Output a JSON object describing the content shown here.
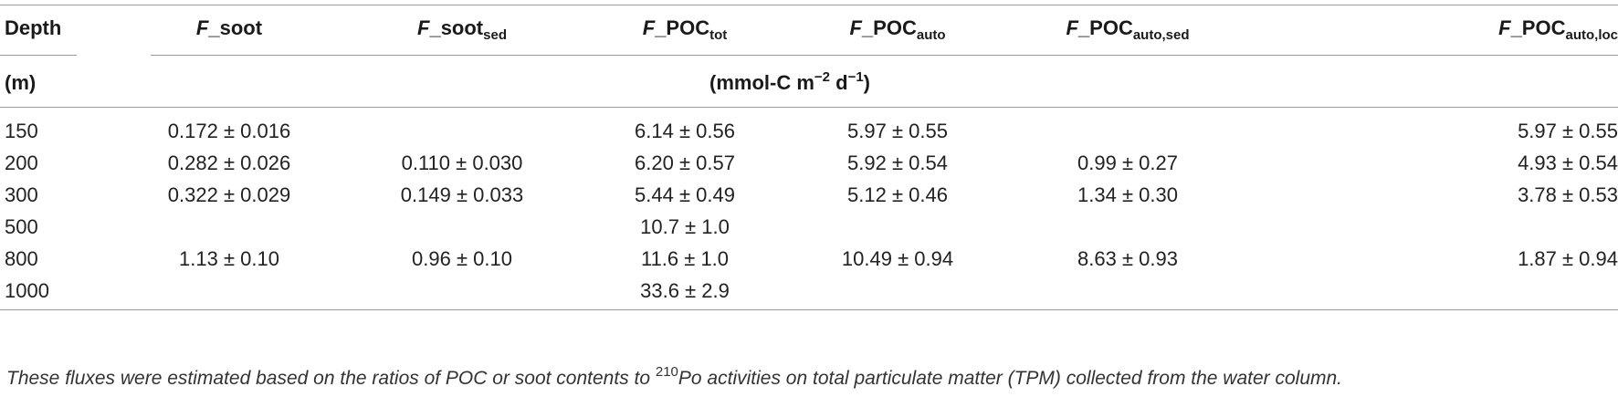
{
  "table": {
    "headers": {
      "depth": "Depth",
      "f_soot": {
        "pre": "F",
        "main": "_soot",
        "sub": ""
      },
      "f_soot_sed": {
        "pre": "F",
        "main": "_soot",
        "sub": "sed"
      },
      "f_poc_tot": {
        "pre": "F",
        "main": "_POC",
        "sub": "tot"
      },
      "f_poc_auto": {
        "pre": "F",
        "main": "_POC",
        "sub": "auto"
      },
      "f_poc_auto_sed": {
        "pre": "F",
        "main": "_POC",
        "sub": "auto,sed"
      },
      "f_poc_auto_loc": {
        "pre": "F",
        "main": "_POC",
        "sub": "auto,loc"
      }
    },
    "units": {
      "depth": "(m)",
      "flux_pre": "(mmol-C m",
      "flux_exp1": "−2",
      "flux_mid": " d",
      "flux_exp2": "−1",
      "flux_post": ")"
    },
    "rows": [
      {
        "depth": "150",
        "f_soot": "0.172 ± 0.016",
        "f_soot_sed": "",
        "f_poc_tot": "6.14 ± 0.56",
        "f_poc_auto": "5.97 ± 0.55",
        "f_poc_auto_sed": "",
        "f_poc_auto_loc": "5.97 ± 0.55"
      },
      {
        "depth": "200",
        "f_soot": "0.282 ± 0.026",
        "f_soot_sed": "0.110 ± 0.030",
        "f_poc_tot": "6.20 ± 0.57",
        "f_poc_auto": "5.92 ± 0.54",
        "f_poc_auto_sed": "0.99 ± 0.27",
        "f_poc_auto_loc": "4.93 ± 0.54"
      },
      {
        "depth": "300",
        "f_soot": "0.322 ± 0.029",
        "f_soot_sed": "0.149 ± 0.033",
        "f_poc_tot": "5.44 ± 0.49",
        "f_poc_auto": "5.12 ± 0.46",
        "f_poc_auto_sed": "1.34 ± 0.30",
        "f_poc_auto_loc": "3.78 ± 0.53"
      },
      {
        "depth": "500",
        "f_soot": "",
        "f_soot_sed": "",
        "f_poc_tot": "10.7 ± 1.0",
        "f_poc_auto": "",
        "f_poc_auto_sed": "",
        "f_poc_auto_loc": ""
      },
      {
        "depth": "800",
        "f_soot": "1.13 ± 0.10",
        "f_soot_sed": "0.96 ± 0.10",
        "f_poc_tot": "11.6 ± 1.0",
        "f_poc_auto": "10.49 ± 0.94",
        "f_poc_auto_sed": "8.63 ± 0.93",
        "f_poc_auto_loc": "1.87 ± 0.94"
      },
      {
        "depth": "1000",
        "f_soot": "",
        "f_soot_sed": "",
        "f_poc_tot": "33.6 ± 2.9",
        "f_poc_auto": "",
        "f_poc_auto_sed": "",
        "f_poc_auto_loc": ""
      }
    ]
  },
  "footnote": {
    "pre": "These fluxes were estimated based on the ratios of POC or soot contents to ",
    "sup": "210",
    "post": "Po activities on total particulate matter (TPM) collected from the water column."
  }
}
